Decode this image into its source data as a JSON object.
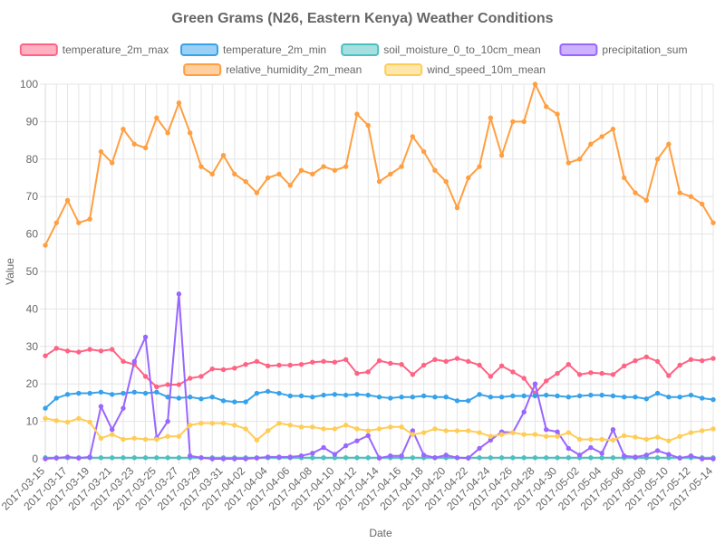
{
  "chart_data": {
    "type": "line",
    "title": "Green Grams (N26, Eastern Kenya) Weather Conditions",
    "xlabel": "Date",
    "ylabel": "Value",
    "ylim": [
      0,
      100
    ],
    "yticks": [
      "0",
      "10",
      "20",
      "30",
      "40",
      "50",
      "60",
      "70",
      "80",
      "90",
      "100"
    ],
    "grid": true,
    "legend_position": "top",
    "x": [
      "2017-03-15",
      "2017-03-16",
      "2017-03-17",
      "2017-03-18",
      "2017-03-19",
      "2017-03-20",
      "2017-03-21",
      "2017-03-22",
      "2017-03-23",
      "2017-03-24",
      "2017-03-25",
      "2017-03-26",
      "2017-03-27",
      "2017-03-28",
      "2017-03-29",
      "2017-03-30",
      "2017-03-31",
      "2017-04-01",
      "2017-04-02",
      "2017-04-03",
      "2017-04-04",
      "2017-04-05",
      "2017-04-06",
      "2017-04-07",
      "2017-04-08",
      "2017-04-09",
      "2017-04-10",
      "2017-04-11",
      "2017-04-12",
      "2017-04-13",
      "2017-04-14",
      "2017-04-15",
      "2017-04-16",
      "2017-04-17",
      "2017-04-18",
      "2017-04-19",
      "2017-04-20",
      "2017-04-21",
      "2017-04-22",
      "2017-04-23",
      "2017-04-24",
      "2017-04-25",
      "2017-04-26",
      "2017-04-27",
      "2017-04-28",
      "2017-04-29",
      "2017-04-30",
      "2017-05-01",
      "2017-05-02",
      "2017-05-03",
      "2017-05-04",
      "2017-05-05",
      "2017-05-06",
      "2017-05-07",
      "2017-05-08",
      "2017-05-09",
      "2017-05-10",
      "2017-05-11",
      "2017-05-12",
      "2017-05-13",
      "2017-05-14"
    ],
    "x_tick_labels": [
      "2017-03-15",
      "2017-03-17",
      "2017-03-19",
      "2017-03-21",
      "2017-03-23",
      "2017-03-25",
      "2017-03-27",
      "2017-03-29",
      "2017-03-31",
      "2017-04-02",
      "2017-04-04",
      "2017-04-06",
      "2017-04-08",
      "2017-04-10",
      "2017-04-12",
      "2017-04-14",
      "2017-04-16",
      "2017-04-18",
      "2017-04-20",
      "2017-04-22",
      "2017-04-24",
      "2017-04-26",
      "2017-04-28",
      "2017-04-30",
      "2017-05-02",
      "2017-05-04",
      "2017-05-06",
      "2017-05-08",
      "2017-05-10",
      "2017-05-12",
      "2017-05-14"
    ],
    "series": [
      {
        "name": "temperature_2m_max",
        "color": "#ff6384",
        "fill": "#ffb1c1",
        "values": [
          27.5,
          29.5,
          28.8,
          28.5,
          29.2,
          28.8,
          29.2,
          26,
          25.2,
          22,
          19.2,
          19.8,
          19.8,
          21.5,
          22,
          24,
          23.8,
          24.2,
          25.2,
          26,
          24.8,
          25,
          25,
          25.2,
          25.8,
          26,
          25.8,
          26.5,
          22.8,
          23.2,
          26.2,
          25.5,
          25.2,
          22.5,
          25,
          26.5,
          26,
          26.8,
          26,
          25,
          22,
          24.8,
          23.2,
          21.5,
          17.5,
          20.8,
          22.8,
          25.2,
          22.5,
          23,
          22.8,
          22.5,
          24.8,
          26.2,
          27.2,
          26,
          22.2,
          25,
          26.5,
          26.2,
          26.8
        ]
      },
      {
        "name": "temperature_2m_min",
        "color": "#36a2eb",
        "fill": "#9ad0f5",
        "values": [
          13.5,
          16.2,
          17.2,
          17.5,
          17.5,
          17.8,
          17.2,
          17.5,
          17.8,
          17.5,
          17.8,
          16.5,
          16.2,
          16.5,
          16,
          16.5,
          15.5,
          15.2,
          15.2,
          17.5,
          18,
          17.5,
          16.8,
          16.8,
          16.5,
          17,
          17.2,
          17,
          17.2,
          17,
          16.5,
          16.2,
          16.5,
          16.5,
          16.8,
          16.5,
          16.5,
          15.5,
          15.5,
          17.2,
          16.5,
          16.5,
          16.8,
          16.8,
          16.8,
          17,
          16.8,
          16.5,
          16.8,
          17,
          17,
          16.8,
          16.5,
          16.5,
          16,
          17.5,
          16.5,
          16.5,
          17,
          16.2,
          15.8
        ]
      },
      {
        "name": "soil_moisture_0_to_10cm_mean",
        "color": "#4bc0c0",
        "fill": "#a5dfdf",
        "values": [
          0.3,
          0.3,
          0.3,
          0.3,
          0.3,
          0.3,
          0.3,
          0.3,
          0.3,
          0.3,
          0.3,
          0.3,
          0.3,
          0.3,
          0.3,
          0.3,
          0.3,
          0.3,
          0.3,
          0.3,
          0.3,
          0.3,
          0.3,
          0.3,
          0.3,
          0.3,
          0.3,
          0.3,
          0.3,
          0.3,
          0.3,
          0.3,
          0.3,
          0.3,
          0.3,
          0.3,
          0.3,
          0.3,
          0.3,
          0.3,
          0.3,
          0.3,
          0.3,
          0.3,
          0.3,
          0.3,
          0.3,
          0.3,
          0.3,
          0.3,
          0.3,
          0.3,
          0.3,
          0.3,
          0.3,
          0.3,
          0.3,
          0.3,
          0.3,
          0.3,
          0.3
        ]
      },
      {
        "name": "precipitation_sum",
        "color": "#9966ff",
        "fill": "#ccb2ff",
        "values": [
          0,
          0.2,
          0.5,
          0.2,
          0.5,
          14,
          7.8,
          13.5,
          26,
          32.5,
          5.5,
          10,
          44,
          0.8,
          0.3,
          0,
          0,
          0,
          0,
          0.2,
          0.5,
          0.5,
          0.5,
          0.8,
          1.5,
          3,
          1.2,
          3.5,
          4.8,
          6.2,
          0.2,
          0.8,
          0.8,
          7.5,
          1,
          0.3,
          1,
          0.3,
          0.2,
          2.8,
          5,
          7.2,
          7,
          12.5,
          20,
          7.8,
          7.2,
          2.8,
          1,
          3,
          1.5,
          7.8,
          0.8,
          0.5,
          1,
          2.2,
          1.2,
          0.2,
          0.8,
          0,
          0
        ]
      },
      {
        "name": "relative_humidity_2m_mean",
        "color": "#ff9f40",
        "fill": "#ffcf9f",
        "values": [
          57,
          63,
          69,
          63,
          64,
          82,
          79,
          88,
          84,
          83,
          91,
          87,
          95,
          87,
          78,
          76,
          81,
          76,
          74,
          71,
          75,
          76,
          73,
          77,
          76,
          78,
          77,
          78,
          92,
          89,
          74,
          76,
          78,
          86,
          82,
          77,
          74,
          67,
          75,
          78,
          91,
          81,
          90,
          90,
          100,
          94,
          92,
          79,
          80,
          84,
          86,
          88,
          75,
          71,
          69,
          80,
          84,
          71,
          70,
          68,
          63
        ]
      },
      {
        "name": "wind_speed_10m_mean",
        "color": "#ffcd56",
        "fill": "#ffe6aa",
        "values": [
          10.8,
          10.2,
          9.8,
          10.8,
          9.8,
          5.5,
          6.5,
          5.2,
          5.5,
          5.2,
          5.2,
          6,
          6,
          9,
          9.5,
          9.5,
          9.5,
          9,
          8,
          5,
          7.5,
          9.5,
          9,
          8.5,
          8.5,
          8,
          8,
          9,
          8,
          7.5,
          8,
          8.5,
          8.5,
          6.5,
          7,
          8,
          7.5,
          7.5,
          7.5,
          7,
          6,
          6.5,
          7,
          6.5,
          6.5,
          6,
          6,
          7,
          5.2,
          5.2,
          5.2,
          5,
          6.2,
          5.8,
          5.2,
          5.8,
          4.8,
          6,
          7,
          7.5,
          8
        ]
      }
    ]
  }
}
